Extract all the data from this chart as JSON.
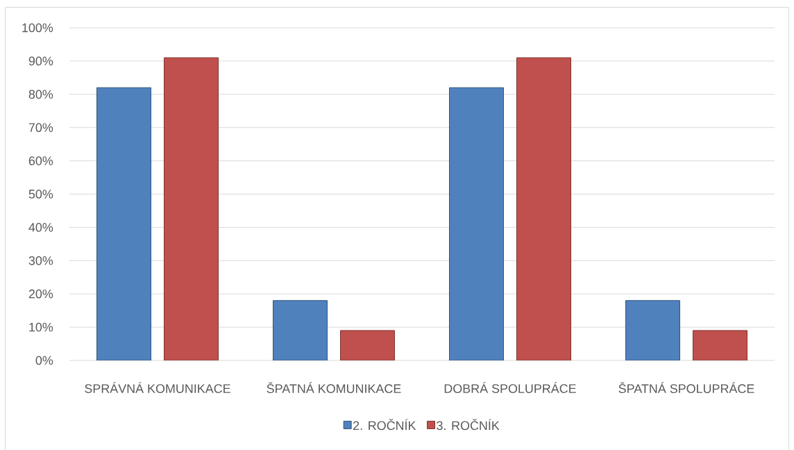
{
  "chart_data": {
    "type": "bar",
    "categories": [
      "SPRÁVNÁ KOMUNIKACE",
      "ŠPATNÁ KOMUNIKACE",
      "DOBRÁ SPOLUPRÁCE",
      "ŠPATNÁ SPOLUPRÁCE"
    ],
    "series": [
      {
        "name": "2. ROČNÍK",
        "color": "#4f81bd",
        "values": [
          82,
          18,
          82,
          18
        ]
      },
      {
        "name": "3. ROČNÍK",
        "color": "#c0504d",
        "values": [
          91,
          9,
          91,
          9
        ]
      }
    ],
    "ylim": [
      0,
      100
    ],
    "yticks": [
      {
        "value": 0,
        "label": "0%"
      },
      {
        "value": 10,
        "label": "10%"
      },
      {
        "value": 20,
        "label": "20%"
      },
      {
        "value": 30,
        "label": "30%"
      },
      {
        "value": 40,
        "label": "40%"
      },
      {
        "value": 50,
        "label": "50%"
      },
      {
        "value": 60,
        "label": "60%"
      },
      {
        "value": 70,
        "label": "70%"
      },
      {
        "value": 80,
        "label": "80%"
      },
      {
        "value": 90,
        "label": "90%"
      },
      {
        "value": 100,
        "label": "100%"
      }
    ],
    "grid": "y",
    "legend": "bottom"
  }
}
